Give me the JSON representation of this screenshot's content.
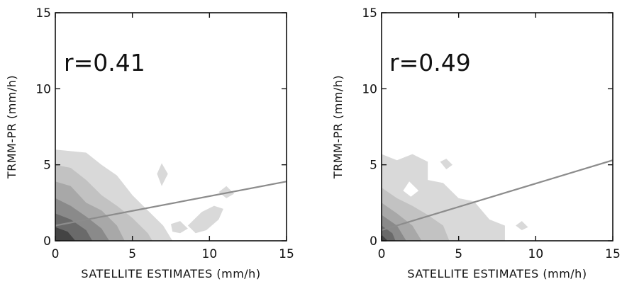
{
  "chart_data": [
    {
      "type": "heatmap",
      "subtype": "filled-contour scatter density with regression line",
      "xlabel": "SATELLITE ESTIMATES (mm/h)",
      "ylabel": "TRMM-PR (mm/h)",
      "xlim": [
        0,
        15
      ],
      "ylim": [
        0,
        15
      ],
      "xticks": [
        "0",
        "5",
        "10",
        "15"
      ],
      "yticks": [
        "0",
        "5",
        "10",
        "15"
      ],
      "annotation": "r=0.41",
      "regression_line": {
        "x": [
          0,
          15
        ],
        "y": [
          1.0,
          3.9
        ]
      },
      "density_levels": [
        {
          "level": 1,
          "color": "#d9d9d9",
          "regions": [
            [
              [
                0,
                0
              ],
              [
                0,
                6
              ],
              [
                2,
                5.8
              ],
              [
                3,
                5
              ],
              [
                4,
                4.3
              ],
              [
                5,
                3
              ],
              [
                6,
                2
              ],
              [
                7,
                1
              ],
              [
                7.6,
                0
              ]
            ],
            [
              [
                6.9,
                5.1
              ],
              [
                7.3,
                4.4
              ],
              [
                6.9,
                3.6
              ],
              [
                6.6,
                4.4
              ]
            ],
            [
              [
                10.6,
                3.2
              ],
              [
                11.1,
                3.6
              ],
              [
                11.6,
                3.1
              ],
              [
                11.1,
                2.8
              ]
            ],
            [
              [
                7.5,
                1.1
              ],
              [
                8.1,
                1.3
              ],
              [
                8.6,
                0.8
              ],
              [
                8.1,
                0.5
              ],
              [
                7.6,
                0.6
              ]
            ],
            [
              [
                8.6,
                1.0
              ],
              [
                9.5,
                1.9
              ],
              [
                10.3,
                2.3
              ],
              [
                10.9,
                2.1
              ],
              [
                10.6,
                1.4
              ],
              [
                9.8,
                0.7
              ],
              [
                9.1,
                0.5
              ]
            ]
          ]
        },
        {
          "level": 2,
          "color": "#c2c2c2",
          "regions": [
            [
              [
                0,
                0
              ],
              [
                0,
                5
              ],
              [
                1,
                4.8
              ],
              [
                2,
                4
              ],
              [
                3,
                3
              ],
              [
                4,
                2.3
              ],
              [
                5,
                1.5
              ],
              [
                6,
                0.5
              ],
              [
                6.3,
                0
              ]
            ]
          ]
        },
        {
          "level": 3,
          "color": "#a8a8a8",
          "regions": [
            [
              [
                0,
                0
              ],
              [
                0,
                3.9
              ],
              [
                1,
                3.6
              ],
              [
                2,
                2.5
              ],
              [
                3,
                2
              ],
              [
                4,
                1
              ],
              [
                4.5,
                0
              ]
            ]
          ]
        },
        {
          "level": 4,
          "color": "#8a8a8a",
          "regions": [
            [
              [
                0,
                0
              ],
              [
                0,
                2.8
              ],
              [
                1,
                2.3
              ],
              [
                2,
                1.6
              ],
              [
                3,
                0.8
              ],
              [
                3.5,
                0
              ]
            ]
          ]
        },
        {
          "level": 5,
          "color": "#6a6a6a",
          "regions": [
            [
              [
                0,
                0
              ],
              [
                0,
                1.8
              ],
              [
                1,
                1.4
              ],
              [
                2,
                0.7
              ],
              [
                2.4,
                0
              ]
            ]
          ]
        },
        {
          "level": 6,
          "color": "#444444",
          "regions": [
            [
              [
                0,
                0
              ],
              [
                0,
                0.9
              ],
              [
                0.8,
                0.6
              ],
              [
                1.3,
                0
              ]
            ]
          ]
        }
      ]
    },
    {
      "type": "heatmap",
      "subtype": "filled-contour scatter density with regression line",
      "xlabel": "SATELLITE ESTIMATES (mm/h)",
      "ylabel": "TRMM-PR (mm/h)",
      "xlim": [
        0,
        15
      ],
      "ylim": [
        0,
        15
      ],
      "xticks": [
        "0",
        "5",
        "10",
        "15"
      ],
      "yticks": [
        "0",
        "5",
        "10",
        "15"
      ],
      "annotation": "r=0.49",
      "regression_line": {
        "x": [
          0,
          15
        ],
        "y": [
          0.7,
          5.3
        ]
      },
      "density_levels": [
        {
          "level": 1,
          "color": "#d9d9d9",
          "regions": [
            [
              [
                0,
                0
              ],
              [
                0,
                5.7
              ],
              [
                1,
                5.3
              ],
              [
                2,
                5.7
              ],
              [
                3,
                5.2
              ],
              [
                3,
                4
              ],
              [
                4,
                3.8
              ],
              [
                5,
                2.8
              ],
              [
                6,
                2.6
              ],
              [
                7,
                1.4
              ],
              [
                8,
                1
              ],
              [
                8,
                0
              ]
            ],
            [
              [
                3.8,
                5.2
              ],
              [
                4.2,
                5.4
              ],
              [
                4.6,
                5.0
              ],
              [
                4.2,
                4.7
              ]
            ],
            [
              [
                8.7,
                1.0
              ],
              [
                9.1,
                1.3
              ],
              [
                9.5,
                0.9
              ],
              [
                9.1,
                0.7
              ]
            ]
          ]
        },
        {
          "level": 2,
          "color": "#c2c2c2",
          "regions": [
            [
              [
                0,
                0
              ],
              [
                0,
                3.5
              ],
              [
                1,
                2.8
              ],
              [
                2,
                2.3
              ],
              [
                3,
                1.7
              ],
              [
                4,
                1
              ],
              [
                4.4,
                0
              ]
            ]
          ]
        },
        {
          "level": 3,
          "color": "#a8a8a8",
          "regions": [
            [
              [
                0,
                0
              ],
              [
                0,
                2.5
              ],
              [
                1,
                1.8
              ],
              [
                2,
                1
              ],
              [
                2.6,
                0
              ]
            ]
          ]
        },
        {
          "level": 4,
          "color": "#8a8a8a",
          "regions": [
            [
              [
                0,
                0
              ],
              [
                0,
                1.7
              ],
              [
                1,
                1
              ],
              [
                1.6,
                0
              ]
            ]
          ]
        },
        {
          "level": 5,
          "color": "#6a6a6a",
          "regions": [
            [
              [
                0,
                0
              ],
              [
                0,
                1
              ],
              [
                0.7,
                0.5
              ],
              [
                0.9,
                0
              ]
            ]
          ]
        },
        {
          "level": 6,
          "color": "#444444",
          "regions": [
            [
              [
                0,
                0
              ],
              [
                0,
                0.4
              ],
              [
                0.4,
                0
              ]
            ]
          ]
        }
      ],
      "blank_regions": [
        [
          [
            1.4,
            3.3
          ],
          [
            1.8,
            3.9
          ],
          [
            2.4,
            3.3
          ],
          [
            1.9,
            2.9
          ]
        ]
      ]
    }
  ]
}
